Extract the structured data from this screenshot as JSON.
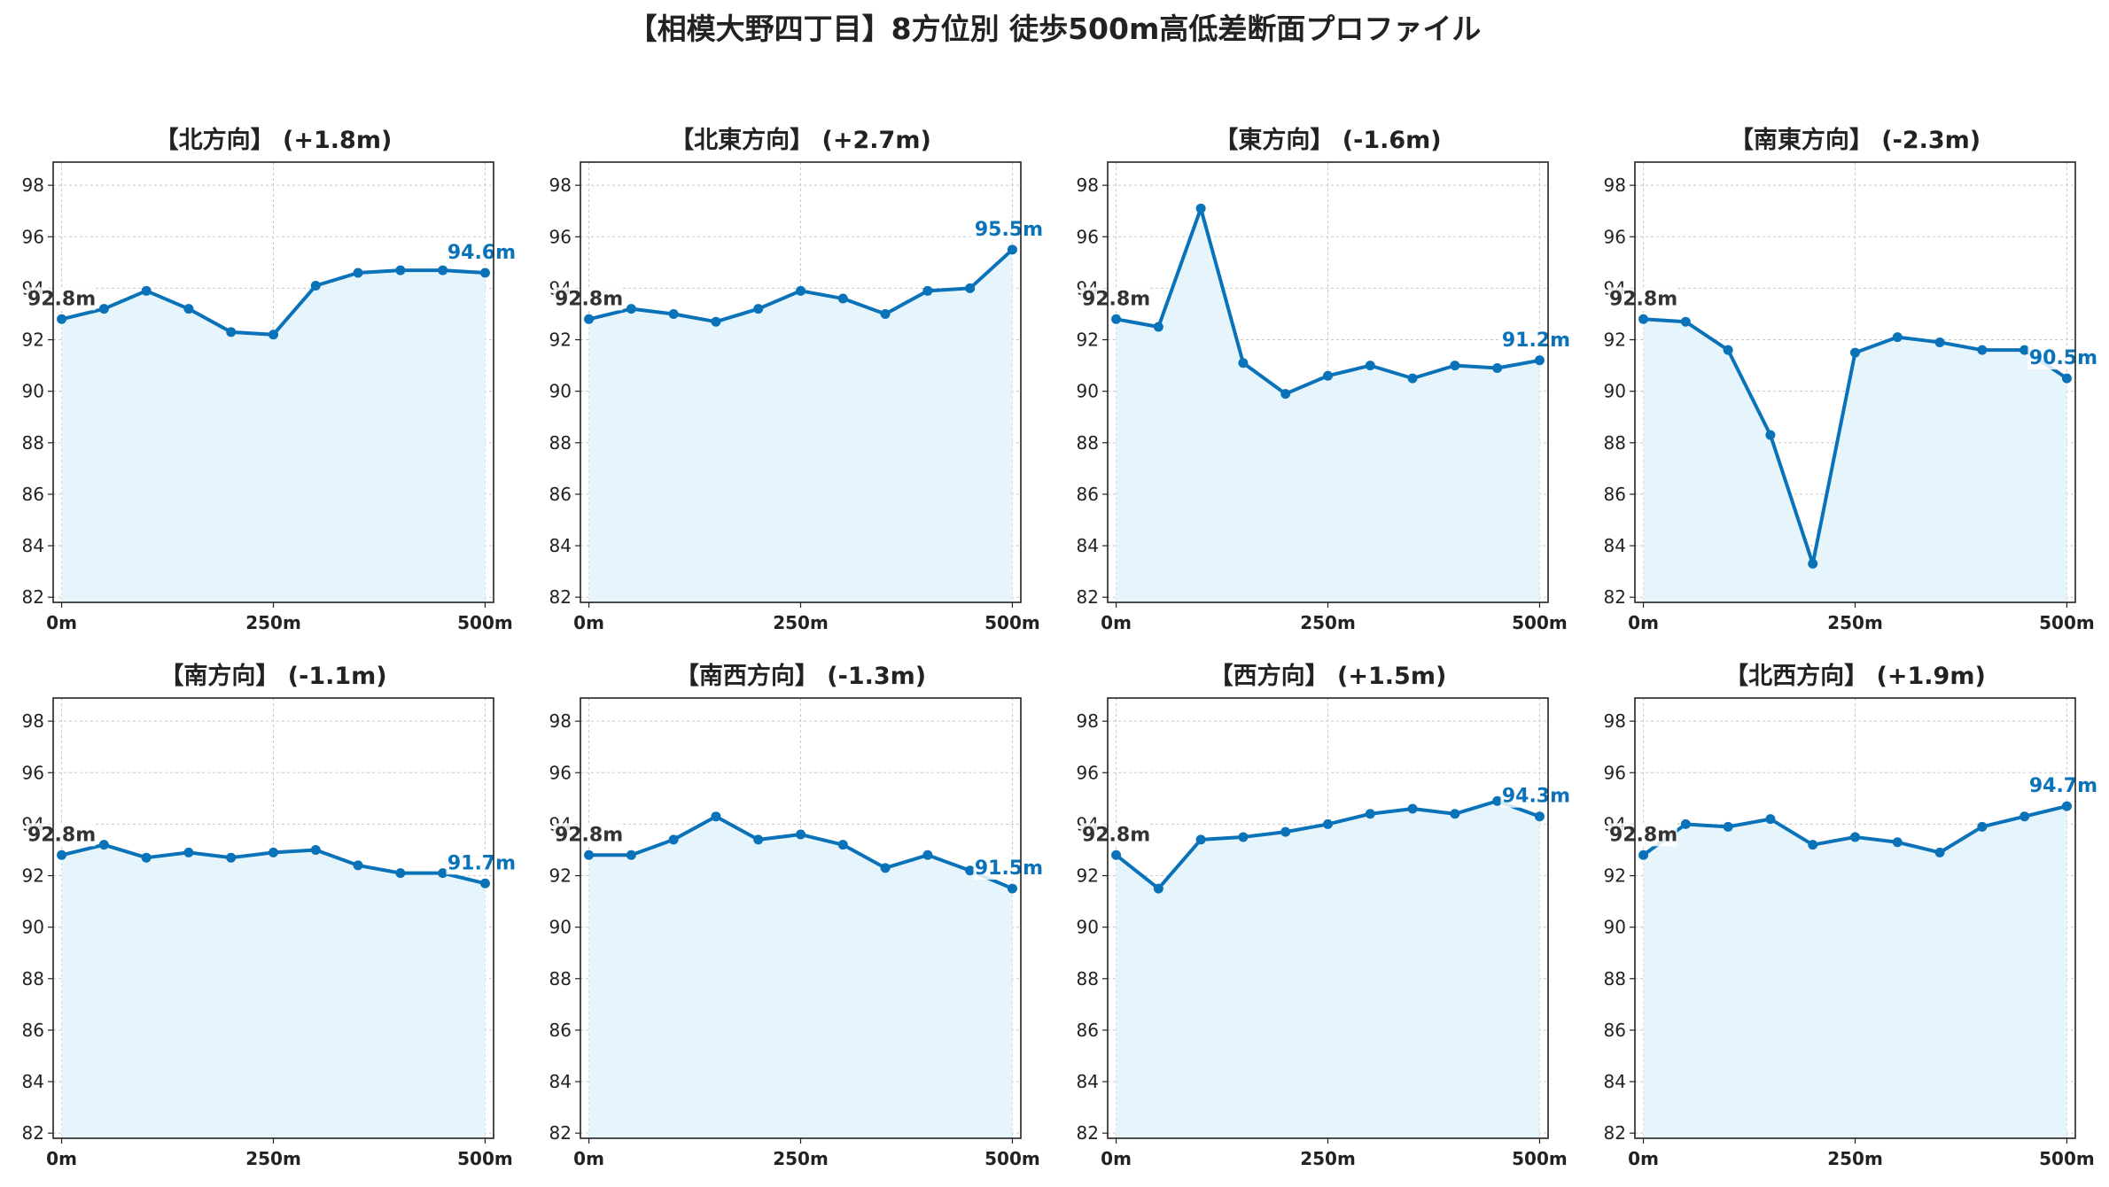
{
  "title": "【相模大野四丁目】8方位別 徒歩500m高低差断面プロファイル",
  "colors": {
    "line": "#0a72b8",
    "fill": "#e6f5fb",
    "grid": "#c8c8c8",
    "start_label": "#333333",
    "end_label": "#0a72b8"
  },
  "chart_data": [
    {
      "type": "area",
      "title": "【北方向】 (+1.8m)",
      "x": [
        0,
        50,
        100,
        150,
        200,
        250,
        300,
        350,
        400,
        450,
        500
      ],
      "y": [
        92.8,
        93.2,
        93.9,
        93.2,
        92.3,
        92.2,
        94.1,
        94.6,
        94.7,
        94.7,
        94.6
      ],
      "start_label": "92.8m",
      "end_label": "94.6m",
      "xticks": [
        "0m",
        "250m",
        "500m"
      ],
      "yticks": [
        "82",
        "84",
        "86",
        "88",
        "90",
        "92",
        "94",
        "96",
        "98"
      ],
      "xlim": [
        -10,
        510
      ],
      "ylim": [
        81.8,
        98.9
      ],
      "grid": true
    },
    {
      "type": "area",
      "title": "【北東方向】 (+2.7m)",
      "x": [
        0,
        50,
        100,
        150,
        200,
        250,
        300,
        350,
        400,
        450,
        500
      ],
      "y": [
        92.8,
        93.2,
        93.0,
        92.7,
        93.2,
        93.9,
        93.6,
        93.0,
        93.9,
        94.0,
        95.5
      ],
      "start_label": "92.8m",
      "end_label": "95.5m",
      "xticks": [
        "0m",
        "250m",
        "500m"
      ],
      "yticks": [
        "82",
        "84",
        "86",
        "88",
        "90",
        "92",
        "94",
        "96",
        "98"
      ],
      "xlim": [
        -10,
        510
      ],
      "ylim": [
        81.8,
        98.9
      ],
      "grid": true
    },
    {
      "type": "area",
      "title": "【東方向】 (-1.6m)",
      "x": [
        0,
        50,
        100,
        150,
        200,
        250,
        300,
        350,
        400,
        450,
        500
      ],
      "y": [
        92.8,
        92.5,
        97.1,
        91.1,
        89.9,
        90.6,
        91.0,
        90.5,
        91.0,
        90.9,
        91.2
      ],
      "start_label": "92.8m",
      "end_label": "91.2m",
      "xticks": [
        "0m",
        "250m",
        "500m"
      ],
      "yticks": [
        "82",
        "84",
        "86",
        "88",
        "90",
        "92",
        "94",
        "96",
        "98"
      ],
      "xlim": [
        -10,
        510
      ],
      "ylim": [
        81.8,
        98.9
      ],
      "grid": true
    },
    {
      "type": "area",
      "title": "【南東方向】 (-2.3m)",
      "x": [
        0,
        50,
        100,
        150,
        200,
        250,
        300,
        350,
        400,
        450,
        500
      ],
      "y": [
        92.8,
        92.7,
        91.6,
        88.3,
        83.3,
        91.5,
        92.1,
        91.9,
        91.6,
        91.6,
        90.5
      ],
      "start_label": "92.8m",
      "end_label": "90.5m",
      "xticks": [
        "0m",
        "250m",
        "500m"
      ],
      "yticks": [
        "82",
        "84",
        "86",
        "88",
        "90",
        "92",
        "94",
        "96",
        "98"
      ],
      "xlim": [
        -10,
        510
      ],
      "ylim": [
        81.8,
        98.9
      ],
      "grid": true
    },
    {
      "type": "area",
      "title": "【南方向】 (-1.1m)",
      "x": [
        0,
        50,
        100,
        150,
        200,
        250,
        300,
        350,
        400,
        450,
        500
      ],
      "y": [
        92.8,
        93.2,
        92.7,
        92.9,
        92.7,
        92.9,
        93.0,
        92.4,
        92.1,
        92.1,
        91.7
      ],
      "start_label": "92.8m",
      "end_label": "91.7m",
      "xticks": [
        "0m",
        "250m",
        "500m"
      ],
      "yticks": [
        "82",
        "84",
        "86",
        "88",
        "90",
        "92",
        "94",
        "96",
        "98"
      ],
      "xlim": [
        -10,
        510
      ],
      "ylim": [
        81.8,
        98.9
      ],
      "grid": true
    },
    {
      "type": "area",
      "title": "【南西方向】 (-1.3m)",
      "x": [
        0,
        50,
        100,
        150,
        200,
        250,
        300,
        350,
        400,
        450,
        500
      ],
      "y": [
        92.8,
        92.8,
        93.4,
        94.3,
        93.4,
        93.6,
        93.2,
        92.3,
        92.8,
        92.2,
        91.5
      ],
      "start_label": "92.8m",
      "end_label": "91.5m",
      "xticks": [
        "0m",
        "250m",
        "500m"
      ],
      "yticks": [
        "82",
        "84",
        "86",
        "88",
        "90",
        "92",
        "94",
        "96",
        "98"
      ],
      "xlim": [
        -10,
        510
      ],
      "ylim": [
        81.8,
        98.9
      ],
      "grid": true
    },
    {
      "type": "area",
      "title": "【西方向】 (+1.5m)",
      "x": [
        0,
        50,
        100,
        150,
        200,
        250,
        300,
        350,
        400,
        450,
        500
      ],
      "y": [
        92.8,
        91.5,
        93.4,
        93.5,
        93.7,
        94.0,
        94.4,
        94.6,
        94.4,
        94.9,
        94.3
      ],
      "start_label": "92.8m",
      "end_label": "94.3m",
      "xticks": [
        "0m",
        "250m",
        "500m"
      ],
      "yticks": [
        "82",
        "84",
        "86",
        "88",
        "90",
        "92",
        "94",
        "96",
        "98"
      ],
      "xlim": [
        -10,
        510
      ],
      "ylim": [
        81.8,
        98.9
      ],
      "grid": true
    },
    {
      "type": "area",
      "title": "【北西方向】 (+1.9m)",
      "x": [
        0,
        50,
        100,
        150,
        200,
        250,
        300,
        350,
        400,
        450,
        500
      ],
      "y": [
        92.8,
        94.0,
        93.9,
        94.2,
        93.2,
        93.5,
        93.3,
        92.9,
        93.9,
        94.3,
        94.7
      ],
      "start_label": "92.8m",
      "end_label": "94.7m",
      "xticks": [
        "0m",
        "250m",
        "500m"
      ],
      "yticks": [
        "82",
        "84",
        "86",
        "88",
        "90",
        "92",
        "94",
        "96",
        "98"
      ],
      "xlim": [
        -10,
        510
      ],
      "ylim": [
        81.8,
        98.9
      ],
      "grid": true
    }
  ]
}
